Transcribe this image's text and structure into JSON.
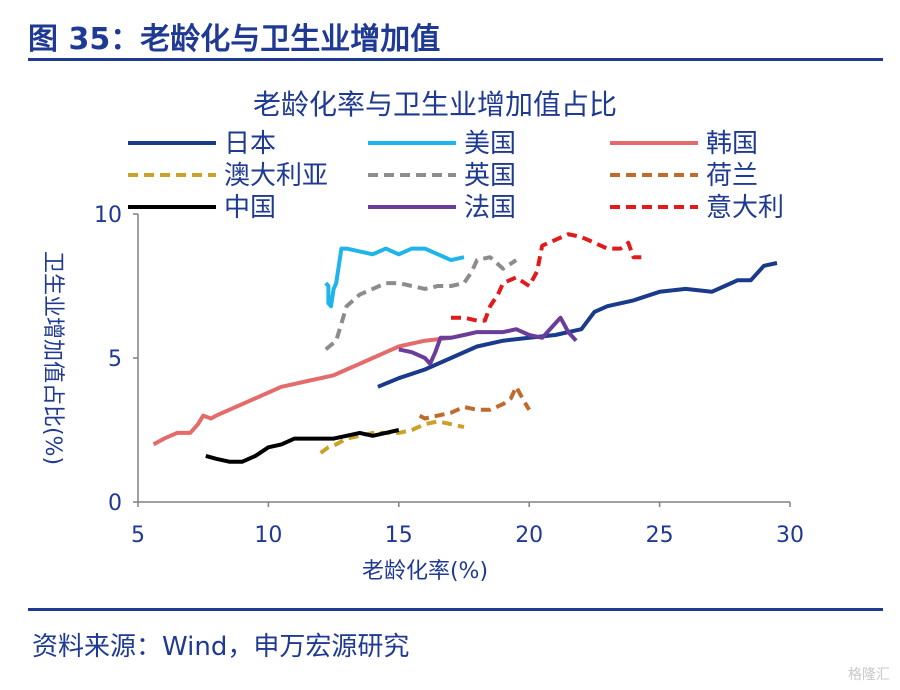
{
  "figure_title": "图 35：老龄化与卫生业增加值",
  "source": "资料来源：Wind，申万宏源研究",
  "watermark": "格隆汇",
  "chart_data": {
    "type": "line",
    "title": "老龄化率与卫生业增加值占比",
    "xlabel": "老龄化率(%)",
    "ylabel": "卫生业增加值占比(%)",
    "xlim": [
      5,
      30
    ],
    "ylim": [
      0,
      10
    ],
    "xticks": [
      5,
      10,
      15,
      20,
      25,
      30
    ],
    "yticks": [
      0,
      5,
      10
    ],
    "grid": false,
    "legend": "top",
    "series": [
      {
        "name": "日本",
        "color": "#1a3a8c",
        "dash": "solid",
        "x": [
          14.2,
          15.0,
          16.0,
          17.0,
          18.0,
          19.0,
          20.0,
          21.0,
          22.0,
          22.5,
          23.0,
          24.0,
          25.0,
          26.0,
          27.0,
          27.5,
          28.0,
          28.5,
          29.0,
          29.5
        ],
        "y": [
          4.0,
          4.3,
          4.6,
          5.0,
          5.4,
          5.6,
          5.7,
          5.8,
          6.0,
          6.6,
          6.8,
          7.0,
          7.3,
          7.4,
          7.3,
          7.5,
          7.7,
          7.7,
          8.2,
          8.3
        ]
      },
      {
        "name": "美国",
        "color": "#1fb4ea",
        "dash": "solid",
        "x": [
          12.2,
          12.3,
          12.3,
          12.4,
          12.5,
          12.6,
          12.8,
          13.0,
          13.5,
          14.0,
          14.5,
          15.0,
          15.5,
          16.0,
          16.5,
          17.0,
          17.5
        ],
        "y": [
          7.6,
          7.5,
          6.9,
          6.8,
          7.4,
          7.6,
          8.8,
          8.8,
          8.7,
          8.6,
          8.8,
          8.6,
          8.8,
          8.8,
          8.6,
          8.4,
          8.5
        ]
      },
      {
        "name": "韩国",
        "color": "#e56a6a",
        "dash": "solid",
        "x": [
          5.6,
          6.0,
          6.5,
          7.0,
          7.3,
          7.5,
          7.8,
          8.0,
          8.5,
          9.0,
          9.5,
          10.0,
          10.5,
          11.0,
          11.5,
          12.0,
          12.5,
          13.0,
          13.5,
          14.0,
          14.5,
          15.0,
          15.5,
          16.0,
          17.0
        ],
        "y": [
          2.0,
          2.2,
          2.4,
          2.4,
          2.7,
          3.0,
          2.9,
          3.0,
          3.2,
          3.4,
          3.6,
          3.8,
          4.0,
          4.1,
          4.2,
          4.3,
          4.4,
          4.6,
          4.8,
          5.0,
          5.2,
          5.4,
          5.5,
          5.6,
          5.7
        ]
      },
      {
        "name": "澳大利亚",
        "color": "#c9a227",
        "dash": "dash",
        "x": [
          12.0,
          12.3,
          12.6,
          13.0,
          13.5,
          14.0,
          14.5,
          15.0,
          15.5,
          16.0,
          16.5,
          17.0,
          17.5
        ],
        "y": [
          1.7,
          1.9,
          2.0,
          2.2,
          2.3,
          2.4,
          2.4,
          2.4,
          2.5,
          2.7,
          2.8,
          2.7,
          2.6
        ]
      },
      {
        "name": "英国",
        "color": "#8c8c8c",
        "dash": "dash",
        "x": [
          12.2,
          12.6,
          13.0,
          13.5,
          14.0,
          14.5,
          15.0,
          15.5,
          16.0,
          16.5,
          17.0,
          17.5,
          17.8,
          18.0,
          18.5,
          19.0,
          19.5
        ],
        "y": [
          5.3,
          5.6,
          6.8,
          7.2,
          7.4,
          7.6,
          7.6,
          7.5,
          7.4,
          7.5,
          7.5,
          7.6,
          8.0,
          8.4,
          8.5,
          8.1,
          8.4
        ]
      },
      {
        "name": "荷兰",
        "color": "#c06a2b",
        "dash": "dash",
        "x": [
          15.8,
          16.0,
          16.5,
          17.0,
          17.5,
          18.0,
          18.5,
          19.0,
          19.3,
          19.5,
          19.8,
          20.0
        ],
        "y": [
          3.0,
          2.9,
          3.0,
          3.1,
          3.3,
          3.2,
          3.2,
          3.4,
          3.6,
          4.0,
          3.5,
          3.2
        ]
      },
      {
        "name": "中国",
        "color": "#000000",
        "dash": "solid",
        "x": [
          7.6,
          8.0,
          8.5,
          9.0,
          9.5,
          10.0,
          10.5,
          11.0,
          11.5,
          12.0,
          12.5,
          13.0,
          13.5,
          14.0,
          14.5,
          15.0
        ],
        "y": [
          1.6,
          1.5,
          1.4,
          1.4,
          1.6,
          1.9,
          2.0,
          2.2,
          2.2,
          2.2,
          2.2,
          2.3,
          2.4,
          2.3,
          2.4,
          2.5
        ]
      },
      {
        "name": "法国",
        "color": "#6a3d9a",
        "dash": "solid",
        "x": [
          15.0,
          15.5,
          16.0,
          16.2,
          16.4,
          16.6,
          17.0,
          17.5,
          18.0,
          18.5,
          19.0,
          19.5,
          20.0,
          20.5,
          21.0,
          21.2,
          21.5,
          21.8
        ],
        "y": [
          5.3,
          5.2,
          5.0,
          4.8,
          5.2,
          5.7,
          5.7,
          5.8,
          5.9,
          5.9,
          5.9,
          6.0,
          5.8,
          5.7,
          6.2,
          6.4,
          5.9,
          5.6
        ]
      },
      {
        "name": "意大利",
        "color": "#e31a1c",
        "dash": "dash",
        "x": [
          17.0,
          17.5,
          18.0,
          18.3,
          18.5,
          18.8,
          19.0,
          19.5,
          20.0,
          20.3,
          20.5,
          21.0,
          21.5,
          22.0,
          22.5,
          23.0,
          23.5,
          23.8,
          24.0,
          24.3
        ],
        "y": [
          6.4,
          6.4,
          6.3,
          6.3,
          6.8,
          7.2,
          7.6,
          7.8,
          7.5,
          8.0,
          8.9,
          9.1,
          9.3,
          9.2,
          9.0,
          8.8,
          8.8,
          9.0,
          8.5,
          8.5
        ]
      }
    ]
  }
}
